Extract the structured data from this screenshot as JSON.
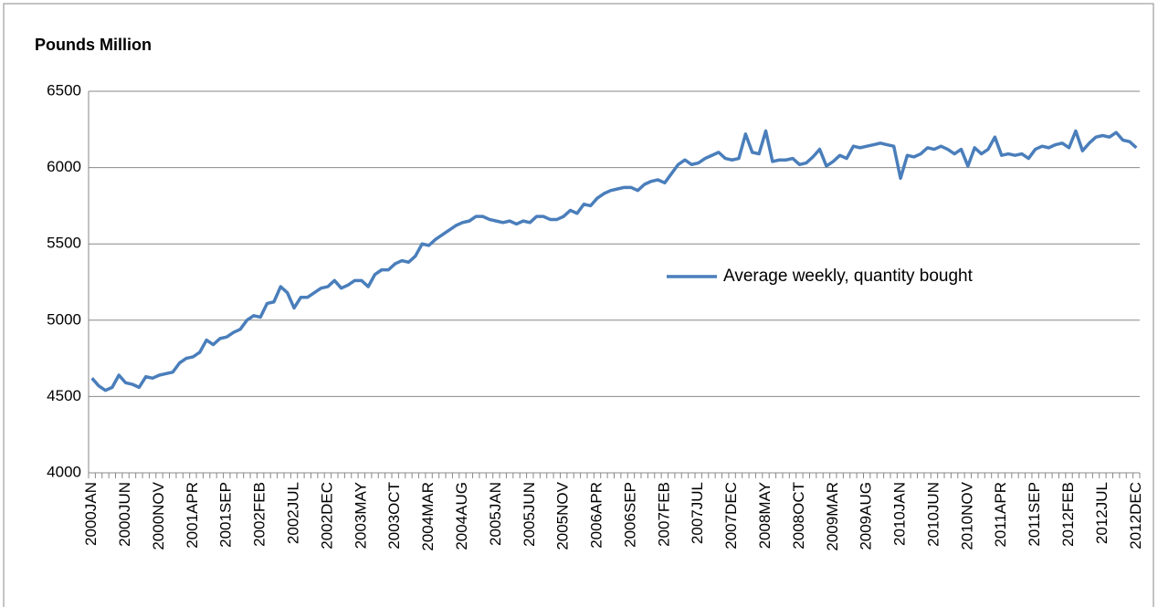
{
  "chart_data": {
    "type": "line",
    "y_axis_title": "Pounds Million",
    "categories": [
      "2000JAN",
      null,
      null,
      null,
      null,
      "2000JUN",
      null,
      null,
      null,
      null,
      "2000NOV",
      null,
      null,
      null,
      null,
      "2001APR",
      null,
      null,
      null,
      null,
      "2001SEP",
      null,
      null,
      null,
      null,
      "2002FEB",
      null,
      null,
      null,
      null,
      "2002JUL",
      null,
      null,
      null,
      null,
      "2002DEC",
      null,
      null,
      null,
      null,
      "2003MAY",
      null,
      null,
      null,
      null,
      "2003OCT",
      null,
      null,
      null,
      null,
      "2004MAR",
      null,
      null,
      null,
      null,
      "2004AUG",
      null,
      null,
      null,
      null,
      "2005JAN",
      null,
      null,
      null,
      null,
      "2005JUN",
      null,
      null,
      null,
      null,
      "2005NOV",
      null,
      null,
      null,
      null,
      "2006APR",
      null,
      null,
      null,
      null,
      "2006SEP",
      null,
      null,
      null,
      null,
      "2007FEB",
      null,
      null,
      null,
      null,
      "2007JUL",
      null,
      null,
      null,
      null,
      "2007DEC",
      null,
      null,
      null,
      null,
      "2008MAY",
      null,
      null,
      null,
      null,
      "2008OCT",
      null,
      null,
      null,
      null,
      "2009MAR",
      null,
      null,
      null,
      null,
      "2009AUG",
      null,
      null,
      null,
      null,
      "2010JAN",
      null,
      null,
      null,
      null,
      "2010JUN",
      null,
      null,
      null,
      null,
      "2010NOV",
      null,
      null,
      null,
      null,
      "2011APR",
      null,
      null,
      null,
      null,
      "2011SEP",
      null,
      null,
      null,
      null,
      "2012FEB",
      null,
      null,
      null,
      null,
      "2012JUL",
      null,
      null,
      null,
      null,
      "2012DEC"
    ],
    "series": [
      {
        "name": "Average weekly, quantity bought",
        "color": "#4a7ebb",
        "values": [
          4620,
          4570,
          4540,
          4560,
          4640,
          4590,
          4580,
          4560,
          4630,
          4620,
          4640,
          4650,
          4660,
          4720,
          4750,
          4760,
          4790,
          4870,
          4840,
          4880,
          4890,
          4920,
          4940,
          5000,
          5030,
          5020,
          5110,
          5120,
          5220,
          5180,
          5080,
          5150,
          5150,
          5180,
          5210,
          5220,
          5260,
          5210,
          5230,
          5260,
          5260,
          5220,
          5300,
          5330,
          5330,
          5370,
          5390,
          5380,
          5420,
          5500,
          5490,
          5530,
          5560,
          5590,
          5620,
          5640,
          5650,
          5680,
          5680,
          5660,
          5650,
          5640,
          5650,
          5630,
          5650,
          5640,
          5680,
          5680,
          5660,
          5660,
          5680,
          5720,
          5700,
          5760,
          5750,
          5800,
          5830,
          5850,
          5860,
          5870,
          5870,
          5850,
          5890,
          5910,
          5920,
          5900,
          5960,
          6020,
          6050,
          6020,
          6030,
          6060,
          6080,
          6100,
          6060,
          6050,
          6060,
          6220,
          6100,
          6090,
          6240,
          6040,
          6050,
          6050,
          6060,
          6020,
          6030,
          6070,
          6120,
          6010,
          6040,
          6080,
          6060,
          6140,
          6130,
          6140,
          6150,
          6160,
          6150,
          6140,
          5930,
          6080,
          6070,
          6090,
          6130,
          6120,
          6140,
          6120,
          6090,
          6120,
          6010,
          6130,
          6090,
          6120,
          6200,
          6080,
          6090,
          6080,
          6090,
          6060,
          6120,
          6140,
          6130,
          6150,
          6160,
          6130,
          6240,
          6110,
          6160,
          6200,
          6210,
          6200,
          6230,
          6180,
          6170,
          6130
        ]
      }
    ],
    "ylim": [
      4000,
      6500
    ],
    "yticks": [
      4000,
      4500,
      5000,
      5500,
      6000,
      6500
    ],
    "grid": true
  }
}
